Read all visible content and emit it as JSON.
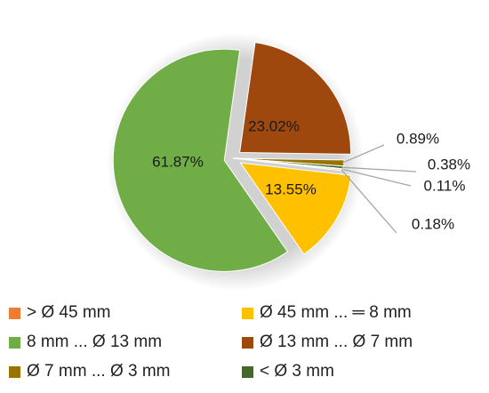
{
  "chart_data": {
    "type": "pie",
    "title": "",
    "categories": [
      "> Ø 45 mm",
      "Ø 45 mm ... ═ 8 mm",
      "8 mm ... Ø 13 mm",
      "Ø 13 mm ... Ø 7 mm",
      "Ø 7 mm ... Ø 3 mm",
      "< Ø 3 mm"
    ],
    "slices": [
      {
        "label": "Ø 13 mm ... Ø 7 mm",
        "value": 23.02,
        "text": "23.02%",
        "color": "#9E480E",
        "exploded": true
      },
      {
        "label": "Ø 7 mm ... Ø 3 mm",
        "value": 0.89,
        "text": "0.89%",
        "color": "#997300",
        "exploded": false
      },
      {
        "label": "< Ø 3 mm",
        "value": 0.38,
        "text": "0.38%",
        "color": "#43682B",
        "exploded": false
      },
      {
        "label": "?",
        "value": 0.11,
        "text": "0.11%",
        "color": "#698ED0",
        "exploded": false
      },
      {
        "label": "?",
        "value": 0.18,
        "text": "0.18%",
        "color": "#F1975A",
        "exploded": false
      },
      {
        "label": "Ø 45 mm ... ═ 8 mm",
        "value": 13.55,
        "text": "13.55%",
        "color": "#FFC000",
        "exploded": true
      },
      {
        "label": "8 mm ... Ø 13 mm",
        "value": 61.87,
        "text": "61.87%",
        "color": "#70AD47",
        "exploded": true
      }
    ],
    "legend": [
      {
        "label": "> Ø 45 mm",
        "color": "#ED7D31"
      },
      {
        "label": "Ø 45 mm ... ═ 8 mm",
        "color": "#FFC000"
      },
      {
        "label": "8 mm ... Ø 13 mm",
        "color": "#70AD47"
      },
      {
        "label": "Ø 13 mm ... Ø 7 mm",
        "color": "#9E480E"
      },
      {
        "label": "Ø 7 mm ... Ø 3 mm",
        "color": "#997300"
      },
      {
        "label": "< Ø 3 mm",
        "color": "#43682B"
      }
    ],
    "legend_position": "bottom"
  }
}
